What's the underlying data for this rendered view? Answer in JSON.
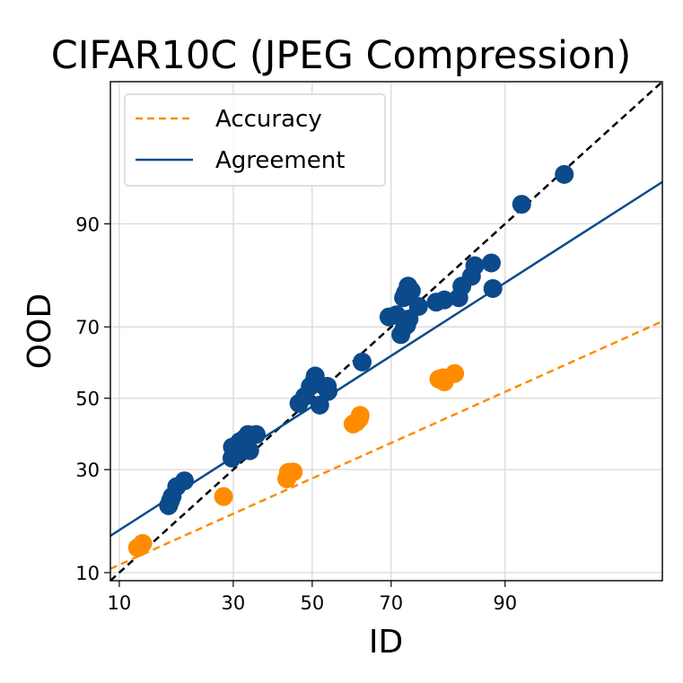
{
  "chart_data": {
    "type": "scatter",
    "title": "CIFAR10C (JPEG Compression)",
    "xlabel": "ID",
    "ylabel": "OOD",
    "x_ticks": [
      10,
      30,
      50,
      70,
      90
    ],
    "y_ticks": [
      10,
      30,
      50,
      70,
      90
    ],
    "x_tick_labels": [
      "10",
      "30",
      "50",
      "70",
      "90"
    ],
    "y_tick_labels": [
      "10",
      "30",
      "50",
      "70",
      "90"
    ],
    "xlim": [
      9,
      99
    ],
    "ylim": [
      9,
      99
    ],
    "scale": "probit",
    "grid": true,
    "legend_position": "top-left",
    "legend": [
      {
        "label": "Accuracy",
        "style": "dashed",
        "color": "#ff8c00"
      },
      {
        "label": "Agreement",
        "style": "solid",
        "color": "#0b4a8b"
      }
    ],
    "reference_line": {
      "style": "dashed",
      "color": "#000000",
      "from": [
        9,
        9
      ],
      "to": [
        99,
        99
      ]
    },
    "series": [
      {
        "name": "Accuracy",
        "color": "#ff8c00",
        "fit": {
          "from": [
            9,
            10.5
          ],
          "to": [
            99,
            71.4
          ]
        },
        "points": [
          [
            12.3,
            13.6
          ],
          [
            13.0,
            14.3
          ],
          [
            27.8,
            23.5
          ],
          [
            43.3,
            27.7
          ],
          [
            43.7,
            29.3
          ],
          [
            45.0,
            29.4
          ],
          [
            60.7,
            42.5
          ],
          [
            61.5,
            43.0
          ],
          [
            62.3,
            44.0
          ],
          [
            62.5,
            45.0
          ],
          [
            80.0,
            55.6
          ],
          [
            81.0,
            54.8
          ],
          [
            80.8,
            56.0
          ],
          [
            82.8,
            57.2
          ]
        ]
      },
      {
        "name": "Agreement",
        "color": "#0b4a8b",
        "fit": {
          "from": [
            9,
            15.6
          ],
          "to": [
            99,
            94.4
          ]
        },
        "points": [
          [
            17.0,
            21.5
          ],
          [
            17.3,
            22.5
          ],
          [
            17.6,
            23.5
          ],
          [
            18.4,
            25.8
          ],
          [
            19.8,
            27.2
          ],
          [
            29.7,
            33.0
          ],
          [
            29.8,
            36.0
          ],
          [
            31.2,
            34.5
          ],
          [
            31.5,
            37.5
          ],
          [
            32.5,
            35.5
          ],
          [
            32.8,
            38.5
          ],
          [
            33.5,
            39.5
          ],
          [
            33.9,
            35.0
          ],
          [
            35.5,
            39.5
          ],
          [
            46.5,
            48.5
          ],
          [
            48.0,
            50.5
          ],
          [
            49.5,
            53.5
          ],
          [
            50.5,
            55.0
          ],
          [
            50.8,
            56.5
          ],
          [
            52.0,
            48.0
          ],
          [
            54.0,
            53.5
          ],
          [
            54.2,
            52.0
          ],
          [
            63.0,
            60.5
          ],
          [
            69.5,
            72.5
          ],
          [
            71.2,
            73.0
          ],
          [
            72.2,
            68.0
          ],
          [
            73.0,
            70.0
          ],
          [
            73.5,
            70.5
          ],
          [
            74.0,
            72.0
          ],
          [
            72.8,
            77.0
          ],
          [
            73.2,
            78.0
          ],
          [
            73.8,
            79.5
          ],
          [
            74.5,
            78.5
          ],
          [
            76.0,
            75.0
          ],
          [
            79.5,
            76.0
          ],
          [
            81.0,
            76.5
          ],
          [
            83.5,
            77.0
          ],
          [
            84.0,
            79.5
          ],
          [
            85.5,
            81.5
          ],
          [
            86.0,
            83.5
          ],
          [
            88.5,
            79.0
          ],
          [
            88.3,
            84.0
          ],
          [
            91.8,
            92.3
          ],
          [
            95.3,
            95.0
          ]
        ]
      }
    ]
  }
}
